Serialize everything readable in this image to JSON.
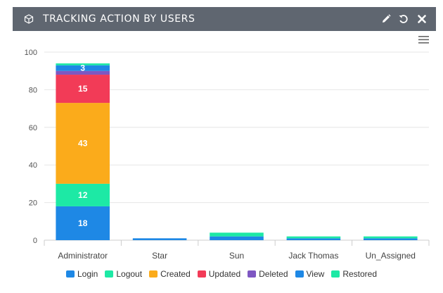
{
  "header": {
    "title": "TRACKING ACTION BY USERS",
    "title_icon": "cube-icon",
    "tools": [
      "edit-icon",
      "refresh-icon",
      "close-icon"
    ],
    "background": "#5f6670"
  },
  "menu_icon": "hamburger-menu-icon",
  "chart_data": {
    "type": "bar",
    "stacked": true,
    "categories": [
      "Administrator",
      "Star",
      "Sun",
      "Jack Thomas",
      "Un_Assigned"
    ],
    "series": [
      {
        "name": "Login",
        "color": "#1e88e5",
        "values": [
          18,
          1,
          0,
          0,
          0
        ]
      },
      {
        "name": "Logout",
        "color": "#1de9a5",
        "values": [
          12,
          0,
          0,
          0,
          0
        ]
      },
      {
        "name": "Created",
        "color": "#fbab1b",
        "values": [
          43,
          0,
          0,
          0,
          0
        ]
      },
      {
        "name": "Updated",
        "color": "#f23b57",
        "values": [
          15,
          0,
          0,
          0,
          0
        ]
      },
      {
        "name": "Deleted",
        "color": "#7e57c2",
        "values": [
          2,
          0,
          0,
          0,
          0
        ]
      },
      {
        "name": "View",
        "color": "#1e88e5",
        "values": [
          3,
          0,
          2,
          1,
          1
        ]
      },
      {
        "name": "Restored",
        "color": "#1de9a5",
        "values": [
          1,
          0,
          2,
          1,
          1
        ]
      }
    ],
    "data_labels": [
      {
        "category": "Administrator",
        "series": "Login",
        "text": "18"
      },
      {
        "category": "Administrator",
        "series": "Logout",
        "text": "12"
      },
      {
        "category": "Administrator",
        "series": "Created",
        "text": "43"
      },
      {
        "category": "Administrator",
        "series": "Updated",
        "text": "15"
      },
      {
        "category": "Administrator",
        "series": "View",
        "text": "3"
      }
    ],
    "y_ticks": [
      0,
      20,
      40,
      60,
      80,
      100
    ],
    "ylim": [
      0,
      100
    ],
    "grid": true,
    "legend_position": "bottom-center",
    "title": "",
    "xlabel": "",
    "ylabel": ""
  }
}
